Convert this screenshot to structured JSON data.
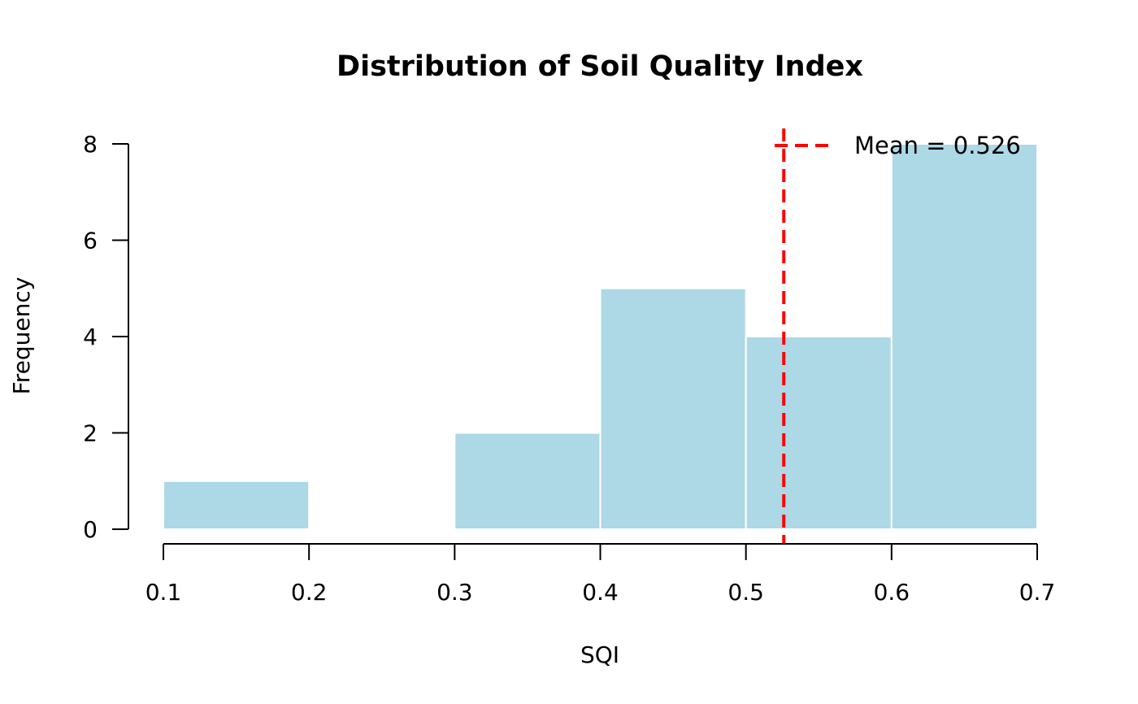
{
  "chart_data": {
    "type": "bar",
    "title": "Distribution of Soil Quality Index",
    "xlabel": "SQI",
    "ylabel": "Frequency",
    "bins": [
      {
        "start": 0.1,
        "end": 0.2,
        "count": 1
      },
      {
        "start": 0.2,
        "end": 0.3,
        "count": 0
      },
      {
        "start": 0.3,
        "end": 0.4,
        "count": 2
      },
      {
        "start": 0.4,
        "end": 0.5,
        "count": 5
      },
      {
        "start": 0.5,
        "end": 0.6,
        "count": 4
      },
      {
        "start": 0.6,
        "end": 0.7,
        "count": 8
      }
    ],
    "xlim": [
      0.1,
      0.7
    ],
    "ylim": [
      0,
      8
    ],
    "x_ticks": [
      "0.1",
      "0.2",
      "0.3",
      "0.4",
      "0.5",
      "0.6",
      "0.7"
    ],
    "y_ticks": [
      "0",
      "2",
      "4",
      "6",
      "8"
    ],
    "mean_value": 0.526,
    "legend": {
      "label": "Mean = 0.526",
      "placement": "top-right"
    },
    "grid": false,
    "colors": {
      "bar_fill": "#ADD8E6",
      "bar_border": "#ffffff",
      "mean_line": "#FF0000"
    }
  }
}
